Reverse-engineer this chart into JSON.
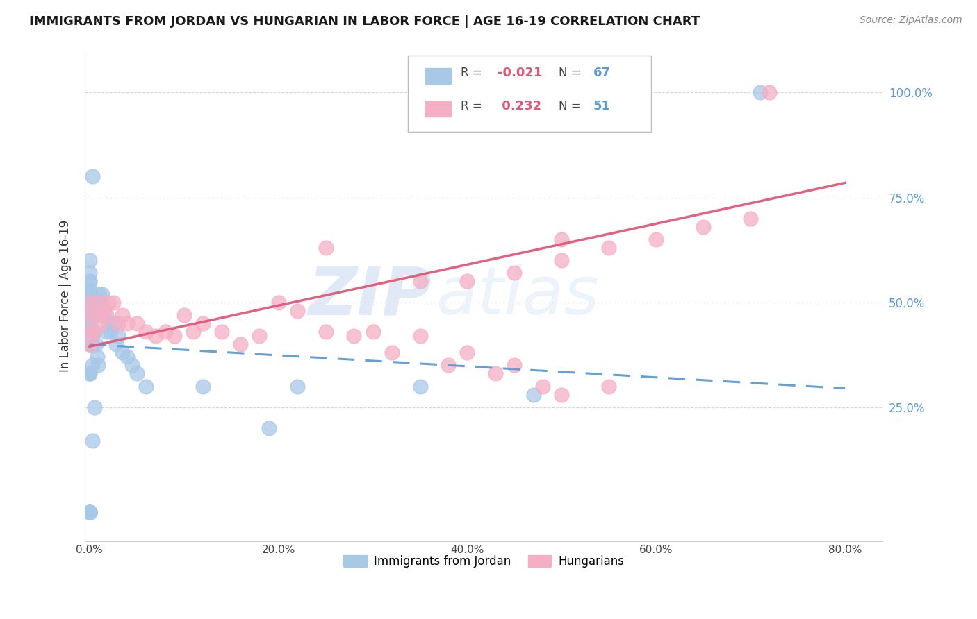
{
  "title": "IMMIGRANTS FROM JORDAN VS HUNGARIAN IN LABOR FORCE | AGE 16-19 CORRELATION CHART",
  "source": "Source: ZipAtlas.com",
  "ylabel": "In Labor Force | Age 16-19",
  "x_ticks": [
    "0.0%",
    "20.0%",
    "40.0%",
    "60.0%",
    "80.0%"
  ],
  "x_tick_vals": [
    0.0,
    0.2,
    0.4,
    0.6,
    0.8
  ],
  "y_ticks_right": [
    "100.0%",
    "75.0%",
    "50.0%",
    "25.0%"
  ],
  "y_tick_vals_right": [
    1.0,
    0.75,
    0.5,
    0.25
  ],
  "xlim": [
    -0.005,
    0.84
  ],
  "ylim": [
    -0.07,
    1.1
  ],
  "jordan_R": "-0.021",
  "jordan_N": "67",
  "hungarian_R": "0.232",
  "hungarian_N": "51",
  "jordan_color": "#a8c8e8",
  "hungarian_color": "#f5afc5",
  "jordan_line_color": "#5b9bd5",
  "hungarian_line_color": "#e05878",
  "background_color": "#ffffff",
  "watermark_zip": "ZIP",
  "watermark_atlas": "atlas",
  "grid_color": "#cccccc",
  "jordan_line_start_y": 0.4,
  "jordan_line_end_y": 0.295,
  "hungarian_line_start_y": 0.395,
  "hungarian_line_end_y": 0.785,
  "jordan_x": [
    0.0,
    0.0,
    0.0,
    0.0,
    0.0,
    0.0,
    0.0,
    0.0,
    0.0,
    0.0,
    0.0,
    0.0,
    0.0,
    0.0,
    0.0,
    0.0,
    0.0,
    0.0,
    0.0,
    0.0,
    0.0,
    0.0,
    0.0,
    0.0,
    0.0,
    0.0,
    0.0,
    0.0,
    0.0,
    0.0,
    0.003,
    0.003,
    0.004,
    0.005,
    0.006,
    0.007,
    0.008,
    0.009,
    0.01,
    0.01,
    0.012,
    0.013,
    0.015,
    0.016,
    0.018,
    0.02,
    0.022,
    0.025,
    0.028,
    0.03,
    0.035,
    0.04,
    0.045,
    0.05,
    0.06,
    0.007,
    0.008,
    0.009,
    0.003,
    0.005,
    0.12,
    0.19,
    0.22,
    0.35,
    0.47,
    0.71,
    0.003
  ],
  "jordan_y": [
    0.0,
    0.0,
    0.0,
    0.0,
    0.0,
    0.33,
    0.33,
    0.33,
    0.4,
    0.4,
    0.4,
    0.43,
    0.43,
    0.45,
    0.45,
    0.47,
    0.47,
    0.47,
    0.5,
    0.5,
    0.5,
    0.5,
    0.52,
    0.52,
    0.53,
    0.53,
    0.55,
    0.55,
    0.57,
    0.6,
    0.35,
    0.4,
    0.43,
    0.43,
    0.47,
    0.47,
    0.48,
    0.5,
    0.5,
    0.52,
    0.5,
    0.52,
    0.47,
    0.48,
    0.43,
    0.45,
    0.43,
    0.45,
    0.4,
    0.42,
    0.38,
    0.37,
    0.35,
    0.33,
    0.3,
    0.4,
    0.37,
    0.35,
    0.17,
    0.25,
    0.3,
    0.2,
    0.3,
    0.3,
    0.28,
    1.0,
    0.8
  ],
  "hungarian_x": [
    0.0,
    0.0,
    0.0,
    0.0,
    0.005,
    0.007,
    0.01,
    0.012,
    0.015,
    0.018,
    0.02,
    0.025,
    0.03,
    0.035,
    0.04,
    0.05,
    0.06,
    0.07,
    0.08,
    0.09,
    0.1,
    0.11,
    0.12,
    0.14,
    0.16,
    0.18,
    0.2,
    0.22,
    0.25,
    0.28,
    0.3,
    0.32,
    0.35,
    0.38,
    0.4,
    0.43,
    0.45,
    0.48,
    0.5,
    0.55,
    0.4,
    0.45,
    0.5,
    0.55,
    0.6,
    0.65,
    0.7,
    0.72,
    0.5,
    0.35,
    0.25
  ],
  "hungarian_y": [
    0.4,
    0.43,
    0.47,
    0.5,
    0.43,
    0.47,
    0.5,
    0.45,
    0.48,
    0.47,
    0.5,
    0.5,
    0.45,
    0.47,
    0.45,
    0.45,
    0.43,
    0.42,
    0.43,
    0.42,
    0.47,
    0.43,
    0.45,
    0.43,
    0.4,
    0.42,
    0.5,
    0.48,
    0.43,
    0.42,
    0.43,
    0.38,
    0.42,
    0.35,
    0.38,
    0.33,
    0.35,
    0.3,
    0.28,
    0.3,
    0.55,
    0.57,
    0.6,
    0.63,
    0.65,
    0.68,
    0.7,
    1.0,
    0.65,
    0.55,
    0.63
  ],
  "legend_jordan_text": "R = -0.021  N = 67",
  "legend_hungarian_text": "R =  0.232  N = 51"
}
